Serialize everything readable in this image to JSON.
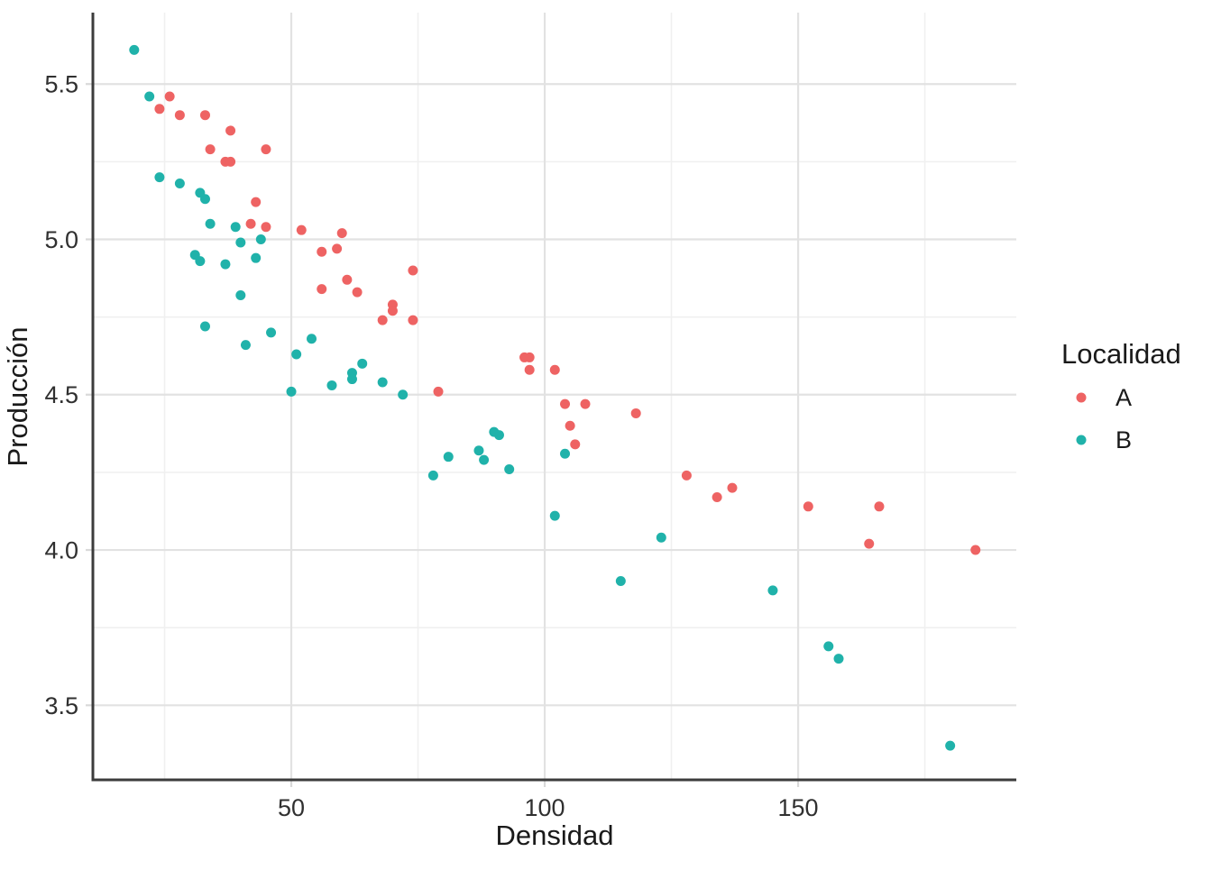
{
  "chart_data": {
    "type": "scatter",
    "title": "",
    "xlabel": "Densidad",
    "ylabel": "Producción",
    "legend_title": "Localidad",
    "legend_position": "right",
    "grid": true,
    "xlim": [
      10.85,
      193.05
    ],
    "ylim": [
      3.26,
      5.73
    ],
    "x_ticks": [
      50,
      100,
      150
    ],
    "y_ticks": [
      3.5,
      4.0,
      4.5,
      5.0,
      5.5
    ],
    "x_minor_ticks": [
      25,
      75,
      125,
      175
    ],
    "y_minor_ticks": [
      3.75,
      4.25,
      4.75,
      5.25
    ],
    "series": [
      {
        "name": "A",
        "color": "#EE6363",
        "points": [
          [
            24,
            5.42
          ],
          [
            26,
            5.46
          ],
          [
            28,
            5.4
          ],
          [
            33,
            5.4
          ],
          [
            34,
            5.29
          ],
          [
            37,
            5.25
          ],
          [
            38,
            5.35
          ],
          [
            38,
            5.25
          ],
          [
            42,
            5.05
          ],
          [
            43,
            5.12
          ],
          [
            45,
            5.29
          ],
          [
            45,
            5.04
          ],
          [
            52,
            5.03
          ],
          [
            56,
            4.96
          ],
          [
            56,
            4.84
          ],
          [
            59,
            4.97
          ],
          [
            60,
            5.02
          ],
          [
            61,
            4.87
          ],
          [
            63,
            4.83
          ],
          [
            68,
            4.74
          ],
          [
            70,
            4.79
          ],
          [
            70,
            4.77
          ],
          [
            74,
            4.9
          ],
          [
            74,
            4.74
          ],
          [
            79,
            4.51
          ],
          [
            96,
            4.62
          ],
          [
            97,
            4.62
          ],
          [
            97,
            4.58
          ],
          [
            102,
            4.58
          ],
          [
            104,
            4.47
          ],
          [
            105,
            4.4
          ],
          [
            106,
            4.34
          ],
          [
            108,
            4.47
          ],
          [
            118,
            4.44
          ],
          [
            128,
            4.24
          ],
          [
            134,
            4.17
          ],
          [
            137,
            4.2
          ],
          [
            152,
            4.14
          ],
          [
            164,
            4.02
          ],
          [
            166,
            4.14
          ],
          [
            185,
            4.0
          ]
        ]
      },
      {
        "name": "B",
        "color": "#20B2AA",
        "points": [
          [
            19,
            5.61
          ],
          [
            22,
            5.46
          ],
          [
            24,
            5.2
          ],
          [
            28,
            5.18
          ],
          [
            31,
            4.95
          ],
          [
            32,
            5.15
          ],
          [
            32,
            4.93
          ],
          [
            33,
            5.13
          ],
          [
            33,
            4.72
          ],
          [
            34,
            5.05
          ],
          [
            37,
            4.92
          ],
          [
            39,
            5.04
          ],
          [
            40,
            4.99
          ],
          [
            40,
            4.82
          ],
          [
            41,
            4.66
          ],
          [
            43,
            4.94
          ],
          [
            44,
            5.0
          ],
          [
            46,
            4.7
          ],
          [
            50,
            4.51
          ],
          [
            51,
            4.63
          ],
          [
            54,
            4.68
          ],
          [
            58,
            4.53
          ],
          [
            62,
            4.57
          ],
          [
            62,
            4.55
          ],
          [
            64,
            4.6
          ],
          [
            68,
            4.54
          ],
          [
            72,
            4.5
          ],
          [
            78,
            4.24
          ],
          [
            81,
            4.3
          ],
          [
            87,
            4.32
          ],
          [
            88,
            4.29
          ],
          [
            90,
            4.38
          ],
          [
            91,
            4.37
          ],
          [
            93,
            4.26
          ],
          [
            102,
            4.11
          ],
          [
            104,
            4.31
          ],
          [
            115,
            3.9
          ],
          [
            123,
            4.04
          ],
          [
            145,
            3.87
          ],
          [
            156,
            3.69
          ],
          [
            158,
            3.65
          ],
          [
            180,
            3.37
          ]
        ]
      }
    ]
  },
  "colors": {
    "background": "#FFFFFF",
    "grid_major": "#E2E2E2",
    "grid_minor": "#F0F0F0",
    "axis_line": "#3C3C3C",
    "tick_mark": "#D9D9D9",
    "axis_text": "#303030",
    "title_text": "#1A1A1A"
  }
}
